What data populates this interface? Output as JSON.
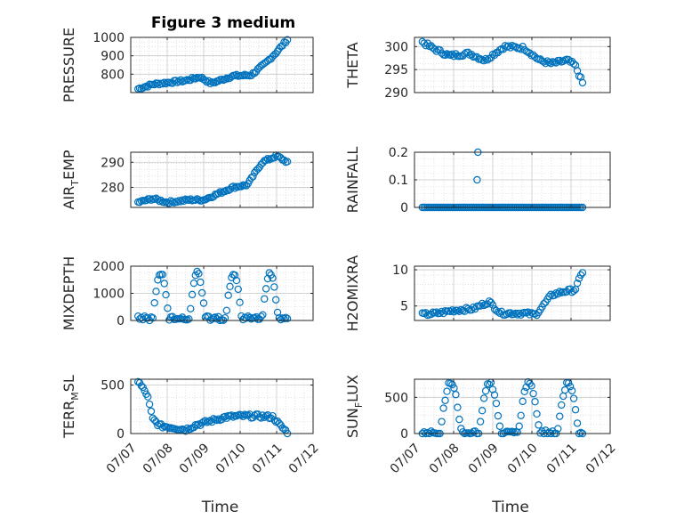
{
  "figure": {
    "title": "Figure 3 medium",
    "marker_color": "#0072BD"
  },
  "chart_data": [
    {
      "type": "scatter",
      "ylabel": "PRESSURE",
      "ylabel_sub": "",
      "ylabel_tail": "",
      "ylim": [
        700,
        1000
      ],
      "yticks": [
        800,
        900,
        1000
      ],
      "xlim": [
        0,
        5
      ],
      "xticks": [
        0,
        1,
        2,
        3,
        4,
        5
      ],
      "xtick_labels": [
        "07/07",
        "07/08",
        "07/09",
        "07/10",
        "07/11",
        "07/12"
      ],
      "show_xticklabels": false,
      "xlabel": "",
      "pattern": "pressure",
      "grid": true
    },
    {
      "type": "scatter",
      "ylabel": "THETA",
      "ylabel_sub": "",
      "ylabel_tail": "",
      "ylim": [
        290,
        302
      ],
      "yticks": [
        290,
        295,
        300
      ],
      "xlim": [
        0,
        5
      ],
      "xticks": [
        0,
        1,
        2,
        3,
        4,
        5
      ],
      "xtick_labels": [
        "07/07",
        "07/08",
        "07/09",
        "07/10",
        "07/11",
        "07/12"
      ],
      "show_xticklabels": false,
      "xlabel": "",
      "pattern": "theta",
      "grid": true
    },
    {
      "type": "scatter",
      "ylabel": "AIR",
      "ylabel_sub": "T",
      "ylabel_tail": "EMP",
      "ylim": [
        272,
        294
      ],
      "yticks": [
        280,
        290
      ],
      "xlim": [
        0,
        5
      ],
      "xticks": [
        0,
        1,
        2,
        3,
        4,
        5
      ],
      "xtick_labels": [
        "07/07",
        "07/08",
        "07/09",
        "07/10",
        "07/11",
        "07/12"
      ],
      "show_xticklabels": false,
      "xlabel": "",
      "pattern": "airtemp",
      "grid": true
    },
    {
      "type": "scatter",
      "ylabel": "RAINFALL",
      "ylabel_sub": "",
      "ylabel_tail": "",
      "ylim": [
        0,
        0.2
      ],
      "yticks": [
        0,
        0.1,
        0.2
      ],
      "xlim": [
        0,
        5
      ],
      "xticks": [
        0,
        1,
        2,
        3,
        4,
        5
      ],
      "xtick_labels": [
        "07/07",
        "07/08",
        "07/09",
        "07/10",
        "07/11",
        "07/12"
      ],
      "show_xticklabels": false,
      "xlabel": "",
      "pattern": "rain",
      "grid": true
    },
    {
      "type": "scatter",
      "ylabel": "MIXDEPTH",
      "ylabel_sub": "",
      "ylabel_tail": "",
      "ylim": [
        0,
        2000
      ],
      "yticks": [
        0,
        1000,
        2000
      ],
      "xlim": [
        0,
        5
      ],
      "xticks": [
        0,
        1,
        2,
        3,
        4,
        5
      ],
      "xtick_labels": [
        "07/07",
        "07/08",
        "07/09",
        "07/10",
        "07/11",
        "07/12"
      ],
      "show_xticklabels": false,
      "xlabel": "",
      "pattern": "mixdepth",
      "grid": true
    },
    {
      "type": "scatter",
      "ylabel": "H2OMIXRA",
      "ylabel_sub": "",
      "ylabel_tail": "",
      "ylim": [
        3,
        10.5
      ],
      "yticks": [
        5,
        10
      ],
      "xlim": [
        0,
        5
      ],
      "xticks": [
        0,
        1,
        2,
        3,
        4,
        5
      ],
      "xtick_labels": [
        "07/07",
        "07/08",
        "07/09",
        "07/10",
        "07/11",
        "07/12"
      ],
      "show_xticklabels": false,
      "xlabel": "",
      "pattern": "h2o",
      "grid": true
    },
    {
      "type": "scatter",
      "ylabel": "TERR",
      "ylabel_sub": "M",
      "ylabel_tail": "SL",
      "ylim": [
        0,
        560
      ],
      "yticks": [
        0,
        500
      ],
      "xlim": [
        0,
        5
      ],
      "xticks": [
        0,
        1,
        2,
        3,
        4,
        5
      ],
      "xtick_labels": [
        "07/07",
        "07/08",
        "07/09",
        "07/10",
        "07/11",
        "07/12"
      ],
      "show_xticklabels": true,
      "xlabel": "Time",
      "pattern": "terr",
      "grid": true
    },
    {
      "type": "scatter",
      "ylabel": "SUN",
      "ylabel_sub": "F",
      "ylabel_tail": "LUX",
      "ylim": [
        0,
        750
      ],
      "yticks": [
        0,
        500
      ],
      "xlim": [
        0,
        5
      ],
      "xticks": [
        0,
        1,
        2,
        3,
        4,
        5
      ],
      "xtick_labels": [
        "07/07",
        "07/08",
        "07/09",
        "07/10",
        "07/11",
        "07/12"
      ],
      "show_xticklabels": true,
      "xlabel": "Time",
      "pattern": "sun",
      "grid": true
    }
  ]
}
